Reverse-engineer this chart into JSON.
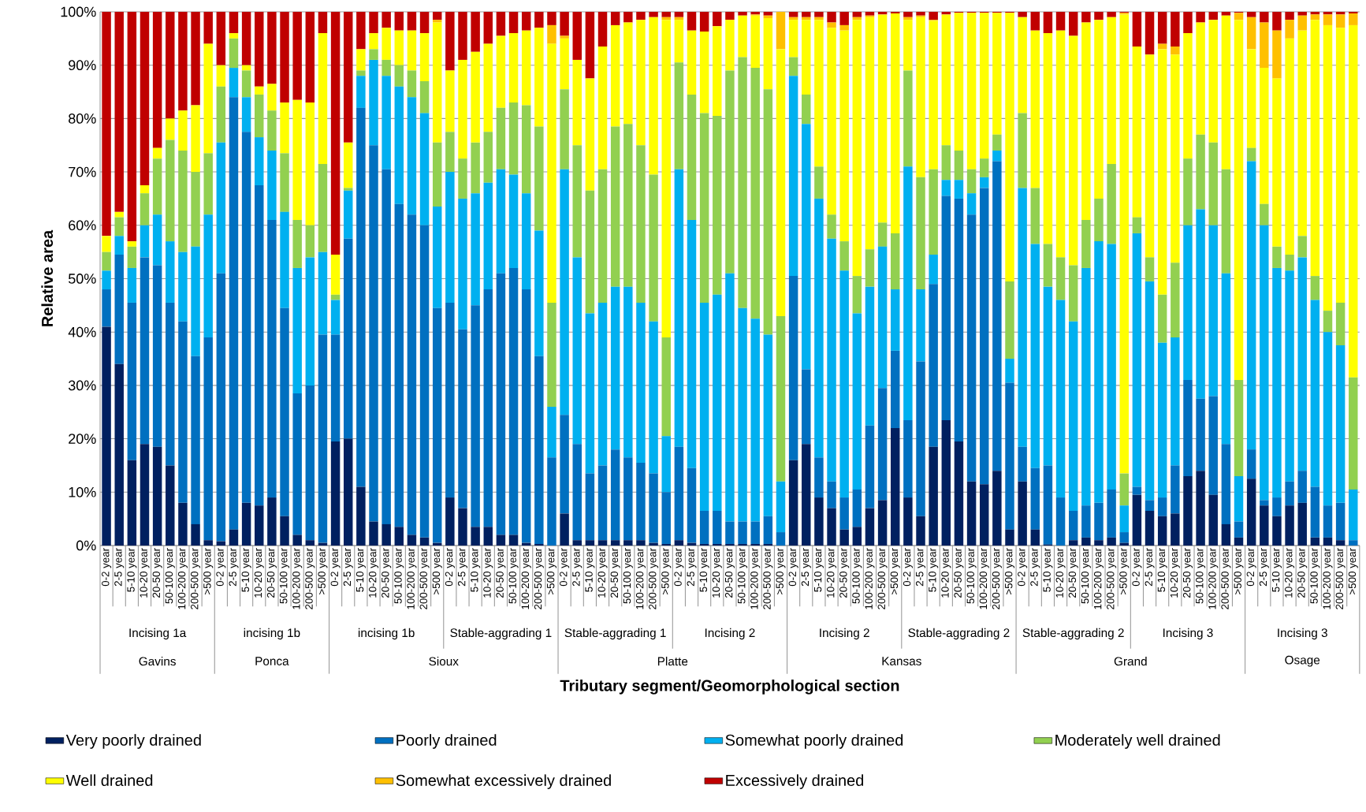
{
  "chart_data": {
    "type": "bar",
    "stacked": true,
    "xlabel": "Tributary segment/Geomorphological section",
    "ylabel": "Relative area",
    "categories": [
      "0-2 year",
      "2-5 year",
      "5-10 year",
      "10-20 year",
      "20-50 year",
      "50-100 year",
      "100-200 year",
      "200-500 year",
      ">500 year",
      "0-2 year",
      "2-5 year",
      "5-10 year",
      "10-20 year",
      "20-50 year",
      "50-100 year",
      "100-200 year",
      "200-500 year",
      ">500 year",
      "0-2 year",
      "2-5 year",
      "5-10 year",
      "10-20 year",
      "20-50 year",
      "50-100 year",
      "100-200 year",
      "200-500 year",
      ">500 year",
      "0-2 year",
      "2-5 year",
      "5-10 year",
      "10-20 year",
      "20-50 year",
      "50-100 year",
      "100-200 year",
      "200-500 year",
      ">500 year",
      "0-2 year",
      "2-5 year",
      "5-10 year",
      "10-20 year",
      "20-50 year",
      "50-100 year",
      "100-200 year",
      "200-500 year",
      ">500 year",
      "0-2 year",
      "2-5 year",
      "5-10 year",
      "10-20 year",
      "20-50 year",
      "50-100 year",
      "100-200 year",
      "200-500 year",
      ">500 year",
      "0-2 year",
      "2-5 year",
      "5-10 year",
      "10-20 year",
      "20-50 year",
      "50-100 year",
      "100-200 year",
      "200-500 year",
      ">500 year",
      "0-2 year",
      "2-5 year",
      "5-10 year",
      "10-20 year",
      "20-50 year",
      "50-100 year",
      "100-200 year",
      "200-500 year",
      ">500 year",
      "0-2 year",
      "2-5 year",
      "5-10 year",
      "10-20 year",
      "20-50 year",
      "50-100 year",
      "100-200 year",
      "200-500 year",
      ">500 year",
      "0-2 year",
      "2-5 year",
      "5-10 year",
      "10-20 year",
      "20-50 year",
      "50-100 year",
      "100-200 year",
      "200-500 year",
      ">500 year",
      "0-2 year",
      "2-5 year",
      "5-10 year",
      "10-20 year",
      "20-50 year",
      "50-100 year",
      "100-200 year",
      "200-500 year",
      ">500 year"
    ],
    "series": [
      {
        "name": "Very poorly drained",
        "color": "#002060",
        "values": [
          41,
          34,
          16,
          19,
          18.5,
          15,
          8,
          4,
          1,
          0.8,
          3,
          8,
          7.5,
          9,
          5.5,
          2,
          1,
          0.5,
          19.5,
          20,
          11,
          4.5,
          4,
          3.5,
          2,
          1.5,
          0.5,
          9,
          7,
          3.5,
          3.5,
          2,
          2,
          0.5,
          0.3,
          0,
          6,
          1,
          1,
          1,
          1,
          1,
          1,
          0.5,
          0.3,
          1,
          0.5,
          0.3,
          0.3,
          0.3,
          0.3,
          0.3,
          0.3,
          0,
          16,
          19,
          9,
          7,
          3,
          3.5,
          7,
          8.5,
          22,
          9,
          5.5,
          18.5,
          23.5,
          19.5,
          12,
          11.5,
          14,
          3,
          12,
          3,
          0.2,
          0,
          1,
          1.5,
          1,
          1.5,
          0.5,
          9.5,
          6.5,
          5.5,
          6,
          13,
          14,
          9.5,
          4,
          1.5,
          12.5,
          7.5,
          5.5,
          7.5,
          8,
          1.5,
          1.5,
          1,
          0
        ]
      },
      {
        "name": "Poorly drained",
        "color": "#0070c0",
        "values": [
          7,
          20.5,
          29.5,
          35,
          34,
          30.5,
          34,
          31.5,
          38,
          50.2,
          81,
          69.5,
          60,
          52,
          39,
          26.5,
          29,
          39,
          20,
          37.5,
          71,
          70.5,
          66.5,
          60.5,
          60,
          58.5,
          44,
          36.5,
          33.5,
          41.5,
          44.5,
          49,
          50,
          47.5,
          35.2,
          16.5,
          18.5,
          18,
          12.5,
          14,
          17,
          15.5,
          14.5,
          13,
          9.7,
          17.5,
          14,
          6.2,
          6.2,
          4.2,
          4.2,
          4.2,
          5.2,
          2.5,
          34.5,
          14,
          7.5,
          5,
          6,
          7,
          15.5,
          21,
          14.5,
          14.5,
          29,
          30.5,
          42,
          45.5,
          50,
          55.5,
          58,
          27.5,
          6.5,
          11.5,
          14.8,
          9,
          5.5,
          6,
          7,
          9,
          2,
          1.5,
          2,
          3.5,
          9,
          18,
          13.5,
          18.5,
          15,
          3,
          5.5,
          1,
          3.5,
          4.5,
          6,
          9.5,
          6,
          7,
          1
        ]
      },
      {
        "name": "Somewhat poorly drained",
        "color": "#00b0f0",
        "values": [
          3.5,
          3.5,
          6.5,
          6,
          9.5,
          11.5,
          13,
          20.5,
          23,
          24.5,
          5.5,
          6.5,
          9,
          13,
          18,
          23.5,
          24,
          15.5,
          6.5,
          9,
          6,
          16,
          17.5,
          22,
          22,
          21,
          19,
          24.5,
          24.5,
          21,
          20,
          19.5,
          17.5,
          18,
          23.5,
          9.5,
          46,
          35,
          30,
          30.5,
          30.5,
          32,
          30,
          28.5,
          10.5,
          52,
          46.5,
          39,
          40.5,
          46.5,
          40,
          38,
          34,
          9.5,
          37.5,
          46,
          48.5,
          45.5,
          42.5,
          33,
          26,
          26.5,
          11.5,
          47.5,
          13.5,
          5.5,
          3,
          3.5,
          4,
          2,
          2,
          4.5,
          48.5,
          42,
          33.5,
          37,
          35.5,
          44.5,
          49,
          46,
          5,
          47.5,
          41,
          29,
          24,
          29,
          35.5,
          32,
          32,
          8.5,
          54,
          51.5,
          43,
          39.5,
          40,
          35,
          32.5,
          29.5,
          9.5
        ]
      },
      {
        "name": "Moderately well drained",
        "color": "#92d050",
        "values": [
          3.5,
          3.5,
          4,
          6,
          10.5,
          19,
          19,
          14,
          11.5,
          10.5,
          5.5,
          5,
          8,
          7.5,
          11,
          9,
          6,
          16.5,
          1,
          0.5,
          1,
          2,
          3,
          4,
          5,
          6,
          12,
          7.5,
          7.5,
          9.5,
          9.5,
          11.5,
          13.5,
          16.5,
          19.5,
          19.5,
          15,
          21,
          23,
          25,
          30,
          30.5,
          29.5,
          27.5,
          18.5,
          20,
          23.5,
          35.5,
          33.5,
          38,
          47,
          47,
          46,
          31,
          3.5,
          5.5,
          6,
          4.5,
          5.5,
          7,
          7,
          4.5,
          10.5,
          18,
          21,
          16,
          6.5,
          5.5,
          4.5,
          3.5,
          3,
          14.5,
          14,
          10.5,
          8,
          8,
          10.5,
          9,
          8,
          15,
          6,
          3,
          4.5,
          9,
          14,
          12.5,
          14,
          15.5,
          19.5,
          18,
          2.5,
          4,
          4,
          3,
          4,
          4.5,
          4,
          8,
          21
        ]
      },
      {
        "name": "Well drained",
        "color": "#ffff00",
        "values": [
          3,
          1,
          1,
          1.5,
          2,
          4,
          7.5,
          12.5,
          20.5,
          4,
          1,
          1,
          1.5,
          5,
          9.5,
          22.5,
          23,
          24.5,
          7.5,
          8.5,
          4,
          3,
          6,
          6.5,
          7.5,
          9,
          22.5,
          11.5,
          18.5,
          17,
          16.5,
          13.5,
          13,
          14,
          18.5,
          48.5,
          9.5,
          16,
          21,
          23,
          19,
          19,
          23.5,
          29.5,
          59.5,
          8,
          12,
          15.3,
          16.8,
          9.5,
          7.8,
          9.8,
          13.3,
          50,
          7,
          14,
          27.5,
          35,
          39.5,
          48,
          43.5,
          39,
          41.2,
          9.5,
          30,
          27.8,
          24.5,
          25.8,
          29.3,
          27.3,
          22.8,
          50.3,
          18,
          29.5,
          39.5,
          42.5,
          43,
          37,
          33.5,
          27.5,
          86,
          32,
          38,
          46,
          39,
          23.5,
          21,
          23,
          28.8,
          67.5,
          18.5,
          25.5,
          31.5,
          40.5,
          38.5,
          48,
          53.5,
          51.5,
          66
        ]
      },
      {
        "name": "Somewhat excessively drained",
        "color": "#ffc000",
        "values": [
          0,
          0,
          0,
          0,
          0,
          0,
          0,
          0,
          0,
          0,
          0,
          0,
          0,
          0,
          0,
          0,
          0,
          0,
          0,
          0,
          0,
          0,
          0,
          0,
          0,
          0,
          0.5,
          0,
          0,
          0,
          0,
          0,
          0,
          0,
          0,
          3.5,
          0.5,
          0,
          0,
          0,
          0,
          0,
          0,
          0,
          0.5,
          0.5,
          0,
          0,
          0,
          0,
          0,
          0.2,
          0.5,
          7,
          0.5,
          0.5,
          0.5,
          1,
          1,
          0.5,
          0.3,
          0,
          0,
          0.5,
          0.3,
          0.2,
          0,
          0,
          0,
          0,
          0,
          0,
          0,
          0,
          0,
          0,
          0,
          0,
          0,
          0,
          0.3,
          0,
          0,
          1,
          1.5,
          0,
          0,
          0,
          0,
          1.3,
          6,
          8.5,
          9,
          3.5,
          2.8,
          1,
          2,
          2.5,
          2.2
        ]
      },
      {
        "name": "Excessively drained",
        "color": "#c00000",
        "values": [
          42,
          37.5,
          43,
          32.5,
          25.5,
          20,
          18.5,
          17.5,
          6,
          10,
          4,
          10,
          14,
          13.5,
          17,
          16.5,
          17,
          4,
          45.5,
          24.5,
          7,
          4,
          3,
          3.5,
          3.5,
          4,
          1.5,
          11,
          9,
          7.5,
          6,
          4.5,
          4,
          3.5,
          3,
          2.5,
          4.5,
          9,
          12.5,
          6.5,
          2.5,
          2,
          1.5,
          1,
          1,
          1,
          3.5,
          3.7,
          2.7,
          1.5,
          0.7,
          0.5,
          0.7,
          0,
          1,
          1,
          1,
          2,
          2.5,
          1,
          0.7,
          0.5,
          0.3,
          1,
          0.7,
          1.5,
          0.5,
          0.2,
          0.2,
          0.2,
          0.2,
          0.2,
          1,
          3.5,
          4,
          3.5,
          4.5,
          2,
          1.5,
          1,
          0.2,
          6.5,
          8,
          6,
          6.5,
          4,
          2,
          1.5,
          0.7,
          0.2,
          1,
          2,
          3.5,
          1.5,
          0.7,
          0.5,
          0.5,
          0.5,
          0.3
        ]
      }
    ],
    "ylim": [
      0,
      100
    ],
    "yticks": [
      {
        "value": 0,
        "label": "0%"
      },
      {
        "value": 10,
        "label": "10%"
      },
      {
        "value": 20,
        "label": "20%"
      },
      {
        "value": 30,
        "label": "30%"
      },
      {
        "value": 40,
        "label": "40%"
      },
      {
        "value": 50,
        "label": "50%"
      },
      {
        "value": 60,
        "label": "60%"
      },
      {
        "value": 70,
        "label": "70%"
      },
      {
        "value": 80,
        "label": "80%"
      },
      {
        "value": 90,
        "label": "90%"
      },
      {
        "value": 100,
        "label": "100%"
      }
    ],
    "grid": "y",
    "legend": "bottom",
    "annotations": [
      "Incising 1a",
      "incising 1b",
      "incising 1b",
      "Stable-aggrading 1",
      "Stable-aggrading 1",
      "Incising 2",
      "Incising 2",
      "Stable-aggrading 2",
      "Stable-aggrading 2",
      "Incising 3",
      "Incising 3",
      "Gavins",
      "Ponca",
      "Sioux",
      "Platte",
      "Kansas",
      "Grand",
      "Osage"
    ]
  }
}
